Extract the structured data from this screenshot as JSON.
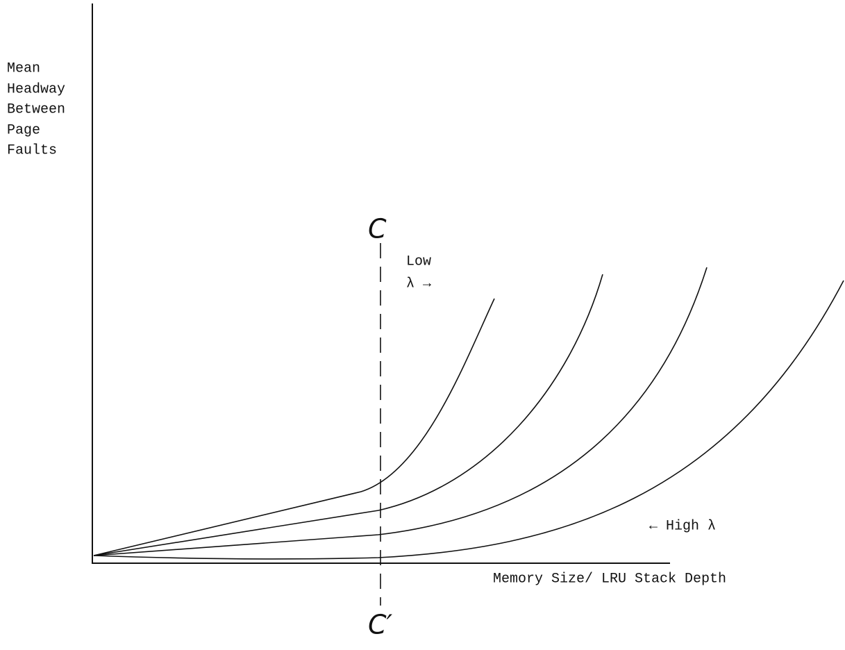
{
  "axes": {
    "y_label": [
      "Mean",
      "Headway",
      "Between",
      "Page",
      "Faults"
    ],
    "x_label": "Memory Size/ LRU Stack Depth"
  },
  "annotations": {
    "c_top": "C",
    "c_bottom": "C′",
    "low": [
      "Low",
      "λ →"
    ],
    "high": "← High λ"
  }
}
